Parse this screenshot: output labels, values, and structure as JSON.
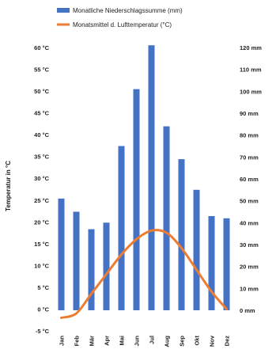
{
  "chart_data": {
    "type": "bar+line",
    "categories": [
      "Jan",
      "Feb",
      "Mär",
      "Apr",
      "Mai",
      "Jun",
      "Jul",
      "Aug",
      "Sep",
      "Okt",
      "Nov",
      "Dez"
    ],
    "series": [
      {
        "name": "Monatliche Niederschlagssumme (mm)",
        "type": "bar",
        "axis": "right",
        "values": [
          51,
          45,
          37,
          40,
          75,
          101,
          121,
          84,
          69,
          55,
          43,
          42
        ]
      },
      {
        "name": "Monatsmittel d. Lufttemperatur (°C)",
        "type": "line",
        "axis": "left",
        "values": [
          -2.0,
          -1.0,
          3.5,
          8.0,
          12.5,
          16.0,
          18.0,
          17.5,
          14.0,
          9.0,
          4.0,
          0.0
        ]
      }
    ],
    "y_left": {
      "label": "Temperatur in °C",
      "range": [
        -5,
        60
      ],
      "ticks": [
        "-5 °C",
        "0 °C",
        "5 °C",
        "10 °C",
        "15 °C",
        "20 °C",
        "25 °C",
        "30 °C",
        "35 °C",
        "40 °C",
        "45 °C",
        "50 °C",
        "55 °C",
        "60 °C"
      ]
    },
    "y_right": {
      "label": "",
      "range": [
        0,
        120
      ],
      "ticks": [
        "0 mm",
        "10 mm",
        "20 mm",
        "30 mm",
        "40 mm",
        "50 mm",
        "60 mm",
        "70 mm",
        "80 mm",
        "90 mm",
        "100 mm",
        "110 mm",
        "120 mm"
      ]
    },
    "legend_position": "top",
    "grid": false,
    "colors": {
      "bar": "#4472c4",
      "line": "#ed7d31"
    }
  }
}
